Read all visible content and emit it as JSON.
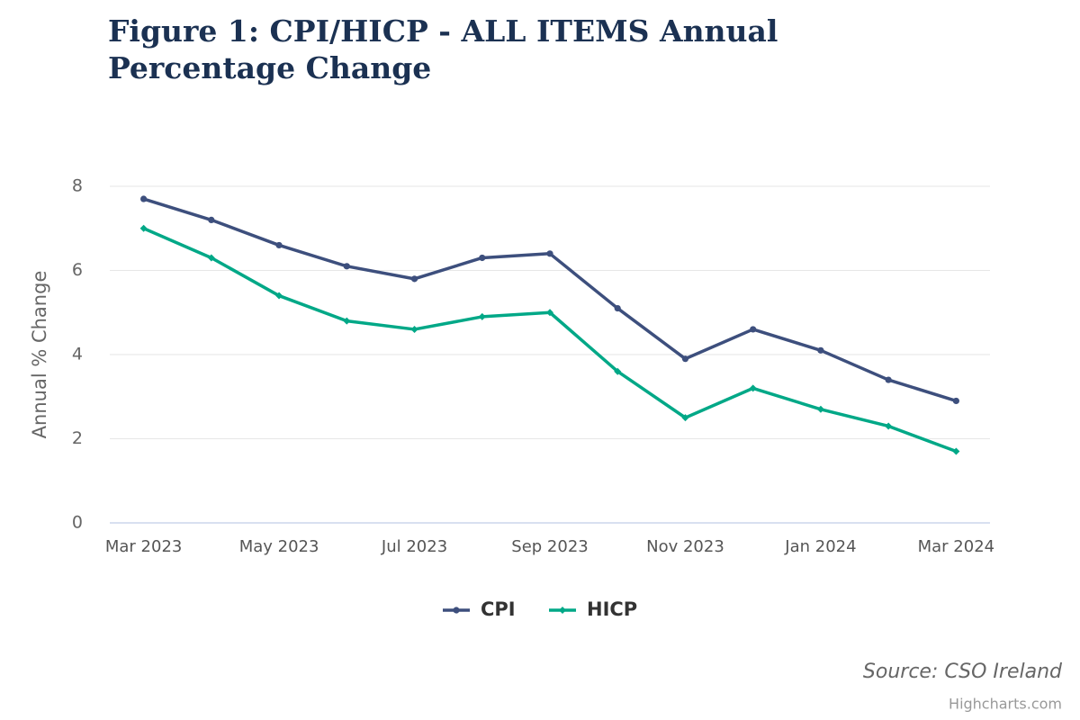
{
  "chart_data": {
    "type": "line",
    "title": "Figure 1: CPI/HICP - ALL ITEMS Annual Percentage Change",
    "y_label": "Annual % Change",
    "source": "Source: CSO Ireland",
    "credits": "Highcharts.com",
    "categories": [
      "Mar 2023",
      null,
      "May 2023",
      null,
      "Jul 2023",
      null,
      "Sep 2023",
      null,
      "Nov 2023",
      null,
      "Jan 2024",
      null,
      "Mar 2024"
    ],
    "series": [
      {
        "name": "CPI",
        "color": "#3d4f7d",
        "marker": "circle",
        "values": [
          7.7,
          7.2,
          6.6,
          6.1,
          5.8,
          6.3,
          6.4,
          5.1,
          3.9,
          4.6,
          4.1,
          3.4,
          2.9
        ]
      },
      {
        "name": "HICP",
        "color": "#00a887",
        "marker": "diamond",
        "values": [
          7.0,
          6.3,
          5.4,
          4.8,
          4.6,
          4.9,
          5.0,
          3.6,
          2.5,
          3.2,
          2.7,
          2.3,
          1.7
        ]
      }
    ],
    "ylim": [
      0,
      8
    ],
    "yticks": [
      0,
      2,
      4,
      6,
      8
    ],
    "grid": true,
    "legend": "bottom"
  }
}
